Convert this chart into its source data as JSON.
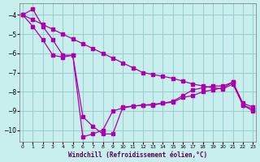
{
  "background_color": "#c8eeee",
  "grid_color": "#99cccc",
  "line_color": "#aa00aa",
  "ylim": [
    -10.6,
    -3.4
  ],
  "xlim": [
    -0.3,
    23.3
  ],
  "ytick_vals": [
    -10,
    -9,
    -8,
    -7,
    -6,
    -5,
    -4
  ],
  "xtick_vals": [
    0,
    1,
    2,
    3,
    4,
    5,
    6,
    7,
    8,
    9,
    10,
    11,
    12,
    13,
    14,
    15,
    16,
    17,
    18,
    19,
    20,
    21,
    22,
    23
  ],
  "xlabel": "Windchill (Refroidissement éolien,°C)",
  "line1_x": [
    0,
    1,
    2,
    3,
    4,
    5,
    6,
    7,
    8,
    9,
    10,
    11,
    12,
    13,
    14,
    15,
    16,
    17,
    18,
    19,
    20,
    21,
    22,
    23
  ],
  "line1_y": [
    -4.0,
    -4.25,
    -4.5,
    -4.75,
    -5.0,
    -5.25,
    -5.5,
    -5.75,
    -6.0,
    -6.25,
    -6.5,
    -6.75,
    -7.0,
    -7.1,
    -7.2,
    -7.3,
    -7.45,
    -7.6,
    -7.7,
    -7.8,
    -7.85,
    -7.6,
    -8.7,
    -9.0
  ],
  "line2_x": [
    0,
    1,
    2,
    3,
    4,
    5,
    6,
    7,
    8,
    9,
    10,
    11,
    12,
    13,
    14,
    15,
    16,
    17,
    18,
    19,
    20,
    21,
    22,
    23
  ],
  "line2_y": [
    -4.0,
    -3.7,
    -4.6,
    -5.3,
    -6.1,
    -6.1,
    -9.3,
    -9.8,
    -10.2,
    -10.2,
    -8.8,
    -8.75,
    -8.7,
    -8.7,
    -8.6,
    -8.5,
    -8.2,
    -7.9,
    -7.8,
    -7.7,
    -7.7,
    -7.5,
    -8.7,
    -8.9
  ],
  "line3_x": [
    0,
    1,
    2,
    3,
    4,
    5,
    6,
    7,
    8,
    9,
    10,
    11,
    12,
    13,
    14,
    15,
    16,
    17,
    18,
    19,
    20,
    21,
    22,
    23
  ],
  "line3_y": [
    -4.0,
    -4.6,
    -5.3,
    -6.1,
    -6.2,
    -6.1,
    -10.35,
    -10.2,
    -10.0,
    -9.0,
    -8.85,
    -8.75,
    -8.7,
    -8.65,
    -8.6,
    -8.55,
    -8.3,
    -8.2,
    -8.0,
    -7.9,
    -7.8,
    -7.5,
    -8.6,
    -8.8
  ]
}
